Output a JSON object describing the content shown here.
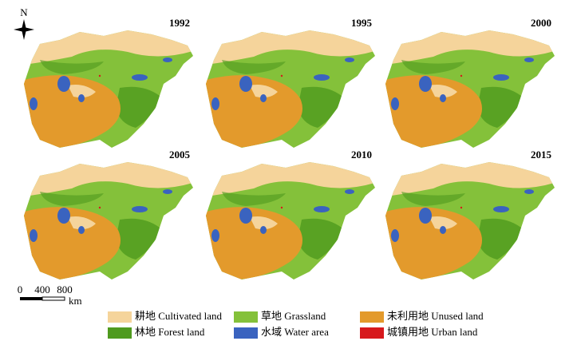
{
  "north": "N",
  "panels": [
    {
      "year": "1992"
    },
    {
      "year": "1995"
    },
    {
      "year": "2000"
    },
    {
      "year": "2005"
    },
    {
      "year": "2010"
    },
    {
      "year": "2015"
    }
  ],
  "legend": [
    {
      "label": "耕地 Cultivated land",
      "color": "#f5d49b"
    },
    {
      "label": "草地 Grassland",
      "color": "#84c13a"
    },
    {
      "label": "未利用地 Unused land",
      "color": "#e39a2c"
    },
    {
      "label": "林地 Forest land",
      "color": "#4f9a1e"
    },
    {
      "label": "水域 Water area",
      "color": "#3a63bf"
    },
    {
      "label": "城镇用地 Urban land",
      "color": "#d7191c"
    }
  ],
  "scale_bar": {
    "ticks": [
      "0",
      "400",
      "800"
    ],
    "unit": "km"
  }
}
